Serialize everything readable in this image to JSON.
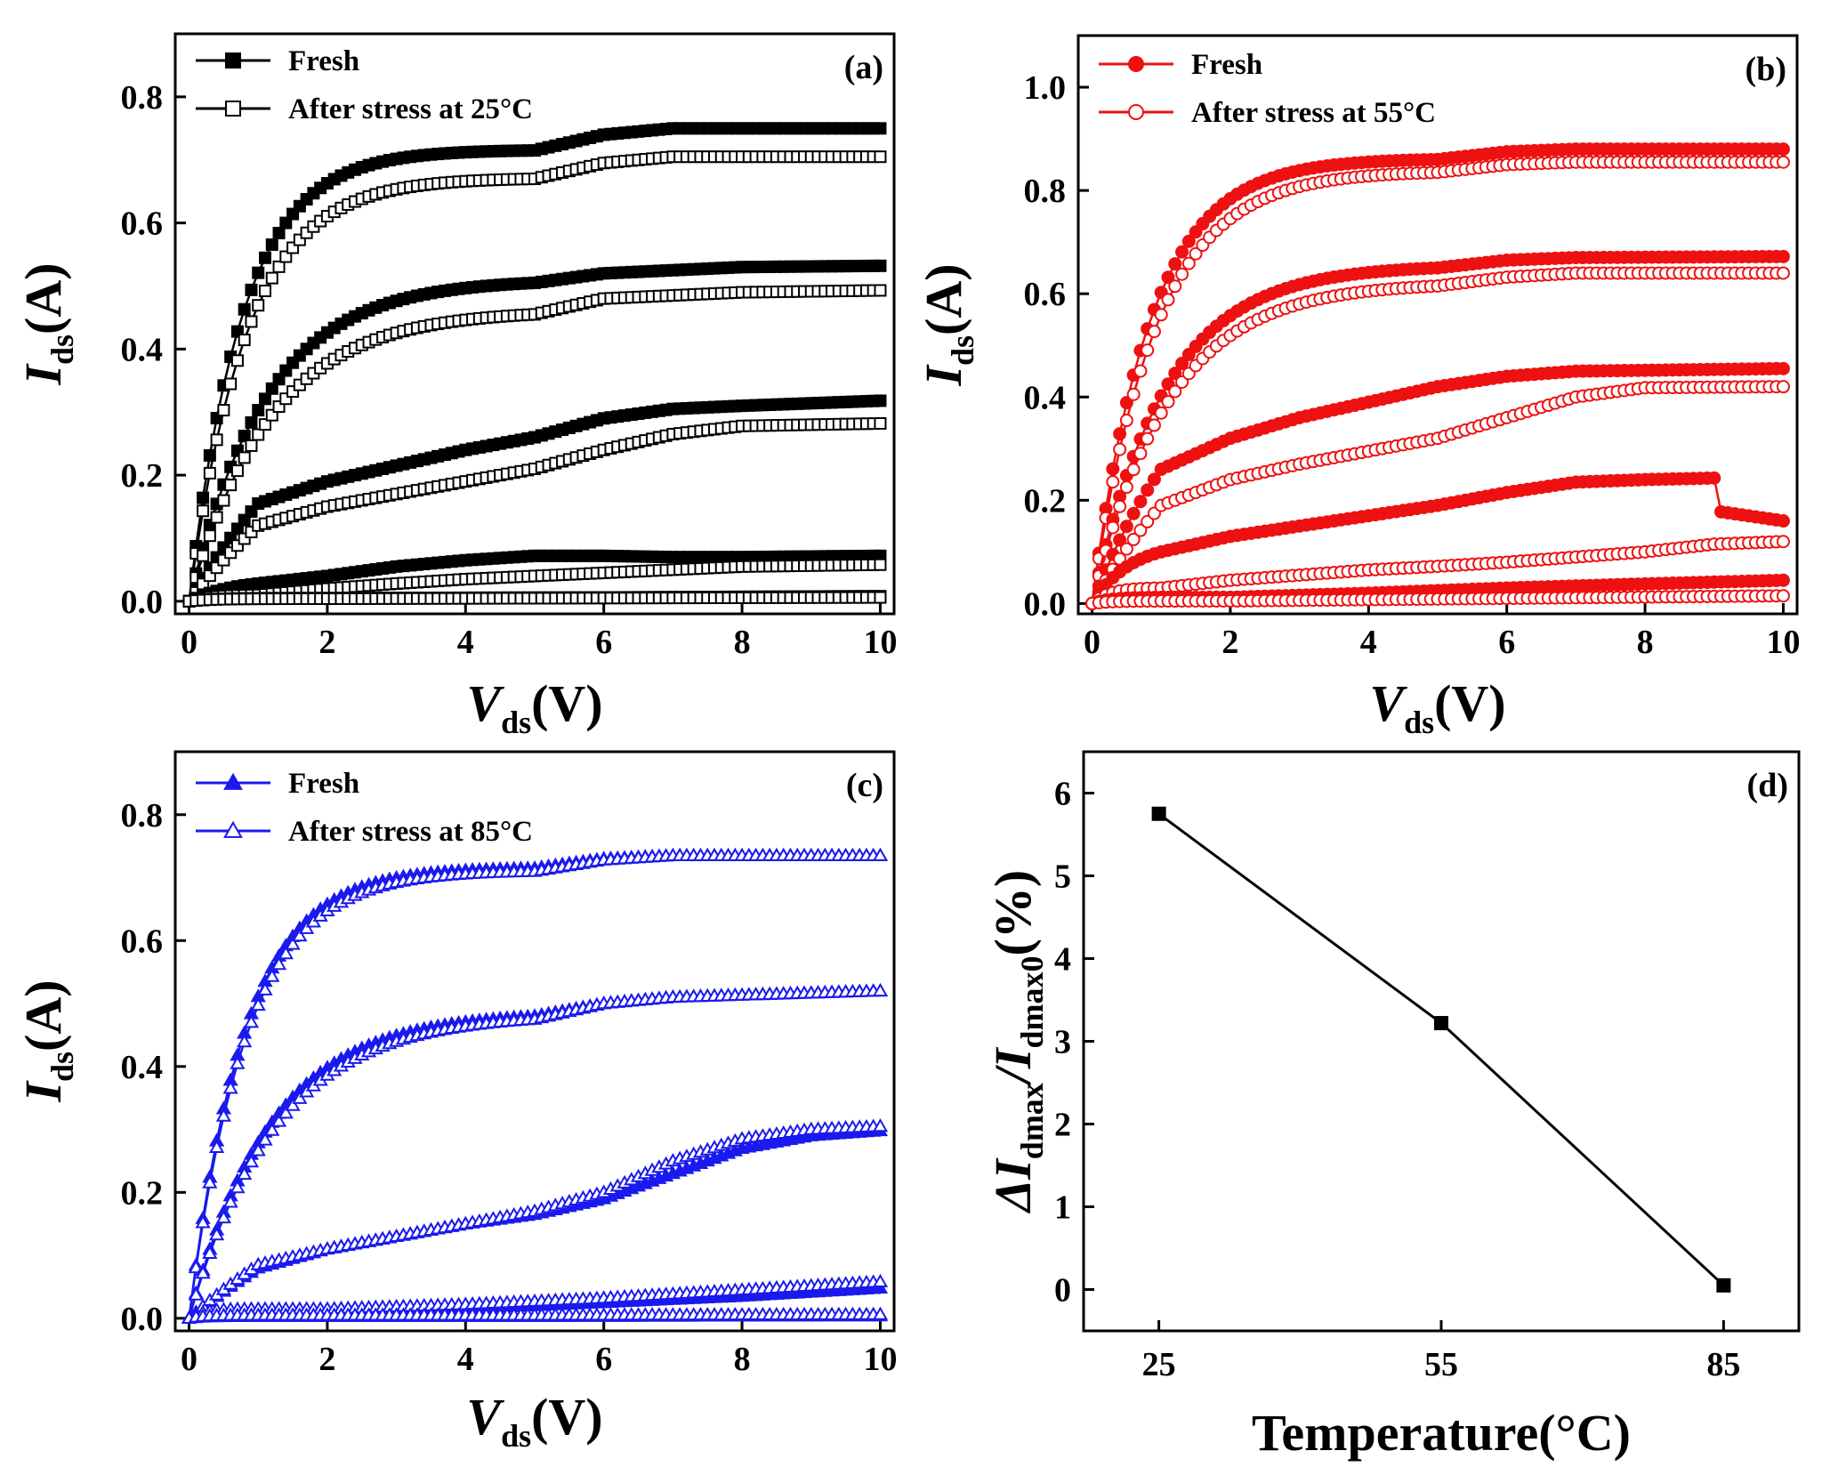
{
  "chart_data": [
    {
      "id": "a",
      "type": "line",
      "panel_label": "(a)",
      "xlabel_main": "V",
      "xlabel_sub": "ds",
      "xlabel_unit": "(V)",
      "ylabel_main": "I",
      "ylabel_sub": "ds",
      "ylabel_unit": "(A)",
      "xlim": [
        -0.2,
        10.2
      ],
      "ylim": [
        -0.02,
        0.9
      ],
      "xticks": [
        0,
        2,
        4,
        6,
        8,
        10
      ],
      "xtick_labels": [
        "0",
        "2",
        "4",
        "6",
        "8",
        "10"
      ],
      "yticks": [
        0.0,
        0.2,
        0.4,
        0.6,
        0.8
      ],
      "ytick_labels": [
        "0.0",
        "0.2",
        "0.4",
        "0.6",
        "0.8"
      ],
      "color": "#000000",
      "marker": "square",
      "legend": [
        "Fresh",
        "After stress at 25°C"
      ],
      "curves": [
        {
          "name": "Fresh",
          "filled": true,
          "isat": 0.75,
          "k": 1.3,
          "points": [
            [
              5,
              0.715
            ],
            [
              6,
              0.74
            ],
            [
              7,
              0.75
            ],
            [
              10,
              0.75
            ]
          ]
        },
        {
          "name": "After stress at 25°C",
          "filled": false,
          "isat": 0.705,
          "k": 1.2,
          "points": [
            [
              5,
              0.67
            ],
            [
              6,
              0.695
            ],
            [
              7,
              0.705
            ],
            [
              10,
              0.705
            ]
          ]
        },
        {
          "name": "Fresh",
          "filled": true,
          "isat": 0.53,
          "k": 0.9,
          "points": [
            [
              5,
              0.505
            ],
            [
              6,
              0.52
            ],
            [
              8,
              0.53
            ],
            [
              10,
              0.532
            ]
          ]
        },
        {
          "name": "After stress at 25°C",
          "filled": false,
          "isat": 0.49,
          "k": 0.85,
          "points": [
            [
              5,
              0.455
            ],
            [
              6,
              0.48
            ],
            [
              8,
              0.49
            ],
            [
              10,
              0.493
            ]
          ]
        },
        {
          "name": "Fresh",
          "filled": true,
          "isat": 0.31,
          "k": 0.4,
          "points": [
            [
              1,
              0.155
            ],
            [
              2,
              0.19
            ],
            [
              3,
              0.215
            ],
            [
              4,
              0.24
            ],
            [
              5,
              0.26
            ],
            [
              6,
              0.29
            ],
            [
              7,
              0.305
            ],
            [
              8,
              0.31
            ],
            [
              10,
              0.318
            ]
          ]
        },
        {
          "name": "After stress at 25°C",
          "filled": false,
          "isat": 0.28,
          "k": 0.35,
          "points": [
            [
              1,
              0.12
            ],
            [
              2,
              0.15
            ],
            [
              3,
              0.17
            ],
            [
              4,
              0.19
            ],
            [
              5,
              0.21
            ],
            [
              6,
              0.24
            ],
            [
              7,
              0.265
            ],
            [
              8,
              0.278
            ],
            [
              10,
              0.282
            ]
          ]
        },
        {
          "name": "Fresh",
          "filled": true,
          "isat": 0.072,
          "k": 1.5,
          "points": [
            [
              1,
              0.028
            ],
            [
              2,
              0.04
            ],
            [
              3,
              0.055
            ],
            [
              4,
              0.065
            ],
            [
              5,
              0.072
            ],
            [
              6,
              0.072
            ],
            [
              7,
              0.07
            ],
            [
              8,
              0.07
            ],
            [
              10,
              0.072
            ]
          ]
        },
        {
          "name": "After stress at 25°C",
          "filled": false,
          "isat": 0.058,
          "k": 3,
          "points": [
            [
              1,
              0.01
            ],
            [
              2,
              0.02
            ],
            [
              3,
              0.028
            ],
            [
              4,
              0.035
            ],
            [
              5,
              0.04
            ],
            [
              6,
              0.045
            ],
            [
              7,
              0.05
            ],
            [
              8,
              0.055
            ],
            [
              10,
              0.058
            ]
          ]
        },
        {
          "name": "Fresh",
          "filled": true,
          "isat": 0.008,
          "k": 3,
          "points": [
            [
              2,
              0.005
            ],
            [
              6,
              0.006
            ],
            [
              10,
              0.008
            ]
          ]
        },
        {
          "name": "After stress at 25°C",
          "filled": false,
          "isat": 0.006,
          "k": 3,
          "points": [
            [
              2,
              0.004
            ],
            [
              6,
              0.005
            ],
            [
              10,
              0.006
            ]
          ]
        }
      ]
    },
    {
      "id": "b",
      "type": "line",
      "panel_label": "(b)",
      "xlabel_main": "V",
      "xlabel_sub": "ds",
      "xlabel_unit": "(V)",
      "ylabel_main": "I",
      "ylabel_sub": "ds",
      "ylabel_unit": "(A)",
      "xlim": [
        -0.2,
        10.2
      ],
      "ylim": [
        -0.02,
        1.1
      ],
      "xticks": [
        0,
        2,
        4,
        6,
        8,
        10
      ],
      "xtick_labels": [
        "0",
        "2",
        "4",
        "6",
        "8",
        "10"
      ],
      "yticks": [
        0.0,
        0.2,
        0.4,
        0.6,
        0.8,
        1.0
      ],
      "ytick_labels": [
        "0.0",
        "0.2",
        "0.4",
        "0.6",
        "0.8",
        "1.0"
      ],
      "color": "#ee1111",
      "marker": "circle",
      "legend": [
        "Fresh",
        "After stress at 55°C"
      ],
      "curves": [
        {
          "name": "Fresh",
          "filled": true,
          "isat": 0.88,
          "k": 1.2,
          "points": [
            [
              5,
              0.86
            ],
            [
              6,
              0.875
            ],
            [
              7,
              0.88
            ],
            [
              10,
              0.88
            ]
          ]
        },
        {
          "name": "After stress at 55°C",
          "filled": false,
          "isat": 0.855,
          "k": 1.1,
          "points": [
            [
              5,
              0.835
            ],
            [
              6,
              0.85
            ],
            [
              7,
              0.855
            ],
            [
              10,
              0.855
            ]
          ]
        },
        {
          "name": "Fresh",
          "filled": true,
          "isat": 0.67,
          "k": 0.95,
          "points": [
            [
              5,
              0.65
            ],
            [
              6,
              0.665
            ],
            [
              7,
              0.67
            ],
            [
              10,
              0.672
            ]
          ]
        },
        {
          "name": "After stress at 55°C",
          "filled": false,
          "isat": 0.64,
          "k": 0.9,
          "points": [
            [
              5,
              0.615
            ],
            [
              6,
              0.632
            ],
            [
              7,
              0.64
            ],
            [
              10,
              0.64
            ]
          ]
        },
        {
          "name": "Fresh",
          "filled": true,
          "isat": 0.455,
          "k": 0.6,
          "points": [
            [
              1,
              0.26
            ],
            [
              2,
              0.32
            ],
            [
              3,
              0.36
            ],
            [
              4,
              0.39
            ],
            [
              5,
              0.42
            ],
            [
              6,
              0.44
            ],
            [
              7,
              0.45
            ],
            [
              10,
              0.455
            ]
          ]
        },
        {
          "name": "After stress at 55°C",
          "filled": false,
          "isat": 0.42,
          "k": 0.45,
          "points": [
            [
              1,
              0.19
            ],
            [
              2,
              0.24
            ],
            [
              3,
              0.27
            ],
            [
              4,
              0.295
            ],
            [
              5,
              0.32
            ],
            [
              6,
              0.36
            ],
            [
              7,
              0.4
            ],
            [
              8,
              0.418
            ],
            [
              10,
              0.42
            ]
          ]
        },
        {
          "name": "Fresh",
          "filled": true,
          "isat": 0.243,
          "k": 1.8,
          "points": [
            [
              1,
              0.1
            ],
            [
              2,
              0.13
            ],
            [
              3,
              0.15
            ],
            [
              4,
              0.17
            ],
            [
              5,
              0.19
            ],
            [
              6,
              0.215
            ],
            [
              7,
              0.235
            ],
            [
              8,
              0.24
            ],
            [
              9,
              0.243
            ],
            [
              9.08,
              0.178
            ],
            [
              10,
              0.16
            ]
          ]
        },
        {
          "name": "After stress at 55°C",
          "filled": false,
          "isat": 0.12,
          "k": 4,
          "points": [
            [
              1,
              0.03
            ],
            [
              2,
              0.045
            ],
            [
              3,
              0.055
            ],
            [
              4,
              0.065
            ],
            [
              5,
              0.072
            ],
            [
              6,
              0.08
            ],
            [
              7,
              0.09
            ],
            [
              8,
              0.1
            ],
            [
              9,
              0.115
            ],
            [
              10,
              0.12
            ]
          ]
        },
        {
          "name": "Fresh",
          "filled": true,
          "isat": 0.045,
          "k": 4,
          "points": [
            [
              2,
              0.012
            ],
            [
              4,
              0.02
            ],
            [
              6,
              0.03
            ],
            [
              8,
              0.038
            ],
            [
              10,
              0.045
            ]
          ]
        },
        {
          "name": "After stress at 55°C",
          "filled": false,
          "isat": 0.015,
          "k": 4,
          "points": [
            [
              2,
              0.005
            ],
            [
              6,
              0.01
            ],
            [
              10,
              0.015
            ]
          ]
        }
      ]
    },
    {
      "id": "c",
      "type": "line",
      "panel_label": "(c)",
      "xlabel_main": "V",
      "xlabel_sub": "ds",
      "xlabel_unit": "(V)",
      "ylabel_main": "I",
      "ylabel_sub": "ds",
      "ylabel_unit": "(A)",
      "xlim": [
        -0.2,
        10.2
      ],
      "ylim": [
        -0.02,
        0.9
      ],
      "xticks": [
        0,
        2,
        4,
        6,
        8,
        10
      ],
      "xtick_labels": [
        "0",
        "2",
        "4",
        "6",
        "8",
        "10"
      ],
      "yticks": [
        0.0,
        0.2,
        0.4,
        0.6,
        0.8
      ],
      "ytick_labels": [
        "0.0",
        "0.2",
        "0.4",
        "0.6",
        "0.8"
      ],
      "color": "#1a1aee",
      "marker": "triangle",
      "legend": [
        "Fresh",
        "After stress at 85°C"
      ],
      "curves": [
        {
          "name": "Fresh",
          "filled": true,
          "isat": 0.735,
          "k": 1.25,
          "points": [
            [
              5,
              0.715
            ],
            [
              6,
              0.73
            ],
            [
              7,
              0.735
            ],
            [
              10,
              0.735
            ]
          ]
        },
        {
          "name": "After stress at 85°C",
          "filled": false,
          "isat": 0.735,
          "k": 1.2,
          "points": [
            [
              5,
              0.71
            ],
            [
              6,
              0.728
            ],
            [
              7,
              0.735
            ],
            [
              10,
              0.735
            ]
          ]
        },
        {
          "name": "Fresh",
          "filled": true,
          "isat": 0.52,
          "k": 0.85,
          "points": [
            [
              5,
              0.48
            ],
            [
              6,
              0.5
            ],
            [
              7,
              0.51
            ],
            [
              10,
              0.52
            ]
          ]
        },
        {
          "name": "After stress at 85°C",
          "filled": false,
          "isat": 0.52,
          "k": 0.8,
          "points": [
            [
              5,
              0.475
            ],
            [
              6,
              0.5
            ],
            [
              7,
              0.51
            ],
            [
              10,
              0.52
            ]
          ]
        },
        {
          "name": "Fresh",
          "filled": true,
          "isat": 0.3,
          "k": 0.3,
          "points": [
            [
              1,
              0.08
            ],
            [
              2,
              0.11
            ],
            [
              3,
              0.13
            ],
            [
              4,
              0.15
            ],
            [
              5,
              0.165
            ],
            [
              6,
              0.19
            ],
            [
              7,
              0.23
            ],
            [
              8,
              0.27
            ],
            [
              9,
              0.29
            ],
            [
              10,
              0.298
            ]
          ]
        },
        {
          "name": "After stress at 85°C",
          "filled": false,
          "isat": 0.305,
          "k": 0.3,
          "points": [
            [
              1,
              0.085
            ],
            [
              2,
              0.11
            ],
            [
              3,
              0.13
            ],
            [
              4,
              0.15
            ],
            [
              5,
              0.17
            ],
            [
              6,
              0.2
            ],
            [
              7,
              0.25
            ],
            [
              8,
              0.285
            ],
            [
              9,
              0.3
            ],
            [
              10,
              0.305
            ]
          ]
        },
        {
          "name": "Fresh",
          "filled": true,
          "isat": 0.048,
          "k": 5,
          "points": [
            [
              2,
              0.01
            ],
            [
              4,
              0.015
            ],
            [
              6,
              0.025
            ],
            [
              8,
              0.035
            ],
            [
              10,
              0.048
            ]
          ]
        },
        {
          "name": "After stress at 85°C",
          "filled": false,
          "isat": 0.058,
          "k": 5,
          "points": [
            [
              2,
              0.015
            ],
            [
              4,
              0.022
            ],
            [
              6,
              0.032
            ],
            [
              8,
              0.045
            ],
            [
              10,
              0.058
            ]
          ]
        },
        {
          "name": "Fresh",
          "filled": true,
          "isat": 0.004,
          "k": 5,
          "points": [
            [
              5,
              0.003
            ],
            [
              10,
              0.004
            ]
          ]
        },
        {
          "name": "After stress at 85°C",
          "filled": false,
          "isat": 0.006,
          "k": 5,
          "points": [
            [
              5,
              0.005
            ],
            [
              10,
              0.006
            ]
          ]
        }
      ]
    },
    {
      "id": "d",
      "type": "line",
      "panel_label": "(d)",
      "xlabel": "Temperature(°C)",
      "ylabel_prefix": "ΔI",
      "ylabel_sub1": "dmax",
      "ylabel_mid": "/I",
      "ylabel_sub2": "dmax0",
      "ylabel_unit": "(%)",
      "categories": [
        "25",
        "55",
        "85"
      ],
      "values": [
        5.75,
        3.22,
        0.05
      ],
      "xlim": [
        17,
        93
      ],
      "ylim": [
        -0.5,
        6.5
      ],
      "yticks": [
        0,
        1,
        2,
        3,
        4,
        5,
        6
      ],
      "ytick_labels": [
        "0",
        "1",
        "2",
        "3",
        "4",
        "5",
        "6"
      ],
      "color": "#000000",
      "marker": "square"
    }
  ]
}
